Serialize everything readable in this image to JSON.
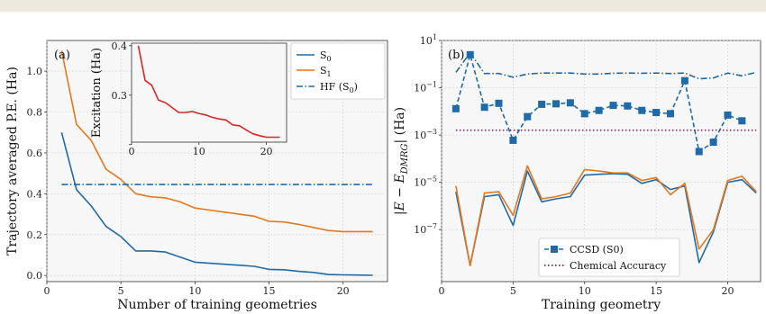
{
  "chart_data": [
    {
      "type": "line",
      "panel_label": "(a)",
      "xlabel": "Number of training geometries",
      "ylabel": "Trajectory averaged P.E. (Ha)",
      "xlim": [
        0,
        23
      ],
      "ylim": [
        -0.03,
        1.15
      ],
      "xticks": [
        0,
        5,
        10,
        15,
        20
      ],
      "yticks": [
        0.0,
        0.2,
        0.4,
        0.6,
        0.8,
        1.0
      ],
      "ytick_labels": [
        "0.0",
        "0.2",
        "0.4",
        "0.6",
        "0.8",
        "1.0"
      ],
      "grid": true,
      "legend_position": "top-right",
      "series": [
        {
          "name": "S0",
          "legend_main": "S",
          "legend_sub": "0",
          "color": "#1f6aa8",
          "style": "solid",
          "x": [
            1,
            2,
            3,
            4,
            5,
            6,
            7,
            8,
            9,
            10,
            11,
            12,
            13,
            14,
            15,
            16,
            17,
            18,
            19,
            20,
            21,
            22
          ],
          "y": [
            0.7,
            0.42,
            0.34,
            0.24,
            0.19,
            0.12,
            0.12,
            0.115,
            0.09,
            0.065,
            0.06,
            0.055,
            0.05,
            0.045,
            0.03,
            0.028,
            0.02,
            0.015,
            0.005,
            0.003,
            0.002,
            0.001
          ]
        },
        {
          "name": "S1",
          "legend_main": "S",
          "legend_sub": "1",
          "color": "#e6771b",
          "style": "solid",
          "x": [
            1,
            2,
            3,
            4,
            5,
            6,
            7,
            8,
            9,
            10,
            11,
            12,
            13,
            14,
            15,
            16,
            17,
            18,
            19,
            20,
            21,
            22
          ],
          "y": [
            1.1,
            0.74,
            0.66,
            0.52,
            0.47,
            0.4,
            0.385,
            0.38,
            0.36,
            0.33,
            0.32,
            0.31,
            0.3,
            0.29,
            0.265,
            0.262,
            0.25,
            0.235,
            0.22,
            0.215,
            0.215,
            0.215
          ]
        },
        {
          "name": "HF (S0)",
          "legend_main": "HF (S",
          "legend_sub": "0",
          "legend_end": ")",
          "color": "#1f6aa8",
          "style": "dashdot",
          "x": [
            1,
            22
          ],
          "y": [
            0.445,
            0.445
          ]
        }
      ],
      "inset": {
        "type": "line",
        "ylabel": "Excitation (Ha)",
        "xlim": [
          0,
          23
        ],
        "ylim": [
          0.205,
          0.405
        ],
        "xticks": [
          0,
          10,
          20
        ],
        "yticks": [
          0.2,
          0.3,
          0.4
        ],
        "ytick_labels": [
          "",
          "0.3",
          "0.4"
        ],
        "series": [
          {
            "color": "#d62728",
            "x": [
              1,
              2,
              3,
              4,
              5,
              6,
              7,
              8,
              9,
              10,
              11,
              12,
              13,
              14,
              15,
              16,
              17,
              18,
              19,
              20,
              21,
              22
            ],
            "y": [
              0.4,
              0.33,
              0.32,
              0.29,
              0.285,
              0.275,
              0.265,
              0.265,
              0.267,
              0.263,
              0.26,
              0.255,
              0.252,
              0.25,
              0.24,
              0.238,
              0.23,
              0.222,
              0.218,
              0.215,
              0.215,
              0.215
            ]
          }
        ]
      }
    },
    {
      "type": "line",
      "panel_label": "(b)",
      "xlabel": "Training geometry",
      "ylabel": "|E − E_DMRG| (Ha)",
      "yscale": "log",
      "xlim": [
        0,
        22.3
      ],
      "ylim_log10": [
        -9.2,
        1
      ],
      "xticks": [
        0,
        5,
        10,
        15,
        20
      ],
      "yticks_log10": [
        -7,
        -5,
        -3,
        -1,
        1
      ],
      "grid": true,
      "legend_position": "lower-center",
      "series": [
        {
          "name": "CCSD (S0)",
          "color": "#1f6aa8",
          "style": "dashed",
          "marker": "square",
          "x": [
            1,
            2,
            3,
            4,
            5,
            6,
            7,
            8,
            9,
            10,
            11,
            12,
            13,
            14,
            15,
            16,
            17,
            18,
            19,
            20,
            21
          ],
          "y": [
            0.013,
            2.5,
            0.015,
            0.022,
            0.0006,
            0.006,
            0.02,
            0.021,
            0.023,
            0.008,
            0.011,
            0.018,
            0.017,
            0.011,
            0.009,
            0.008,
            0.2,
            0.0002,
            0.0005,
            0.007,
            0.004
          ]
        },
        {
          "name": "Chemical Accuracy",
          "color": "#7b1f5e",
          "style": "dotted",
          "x": [
            1,
            22
          ],
          "y": [
            0.0016,
            0.0016
          ]
        },
        {
          "name": "",
          "color": "#1f6aa8",
          "style": "dashdot",
          "x": [
            1,
            2,
            3,
            4,
            5,
            6,
            7,
            8,
            9,
            10,
            11,
            12,
            13,
            14,
            15,
            16,
            17,
            18,
            19,
            20,
            21,
            22
          ],
          "y": [
            0.45,
            3.0,
            0.4,
            0.4,
            0.28,
            0.38,
            0.42,
            0.42,
            0.42,
            0.38,
            0.38,
            0.41,
            0.42,
            0.41,
            0.42,
            0.4,
            0.42,
            0.24,
            0.26,
            0.42,
            0.32,
            0.45
          ]
        },
        {
          "name": "",
          "color": "#1f6aa8",
          "style": "solid",
          "x": [
            1,
            2,
            3,
            4,
            5,
            6,
            7,
            8,
            9,
            10,
            11,
            12,
            13,
            14,
            15,
            16,
            17,
            18,
            19,
            20,
            21,
            22
          ],
          "y": [
            4e-06,
            3e-09,
            2.5e-06,
            3e-06,
            1.5e-07,
            3e-05,
            1.5e-06,
            2e-06,
            2.5e-06,
            2e-05,
            2.2e-05,
            2.3e-05,
            2.2e-05,
            9e-06,
            1.3e-05,
            5e-06,
            7e-06,
            4e-09,
            8e-08,
            1e-05,
            1.3e-05,
            3.5e-06
          ]
        },
        {
          "name": "",
          "color": "#e6771b",
          "style": "solid",
          "x": [
            1,
            2,
            3,
            4,
            5,
            6,
            7,
            8,
            9,
            10,
            11,
            12,
            13,
            14,
            15,
            16,
            17,
            18,
            19,
            20,
            21,
            22
          ],
          "y": [
            7e-06,
            3e-09,
            3.5e-06,
            4e-06,
            4e-07,
            5e-05,
            2e-06,
            2.5e-06,
            3.5e-06,
            3.5e-05,
            3e-05,
            2.5e-05,
            2.5e-05,
            1.2e-05,
            1.6e-05,
            3e-06,
            9e-06,
            1.5e-08,
            1e-07,
            1.2e-05,
            1.8e-05,
            4e-06
          ]
        }
      ]
    }
  ]
}
